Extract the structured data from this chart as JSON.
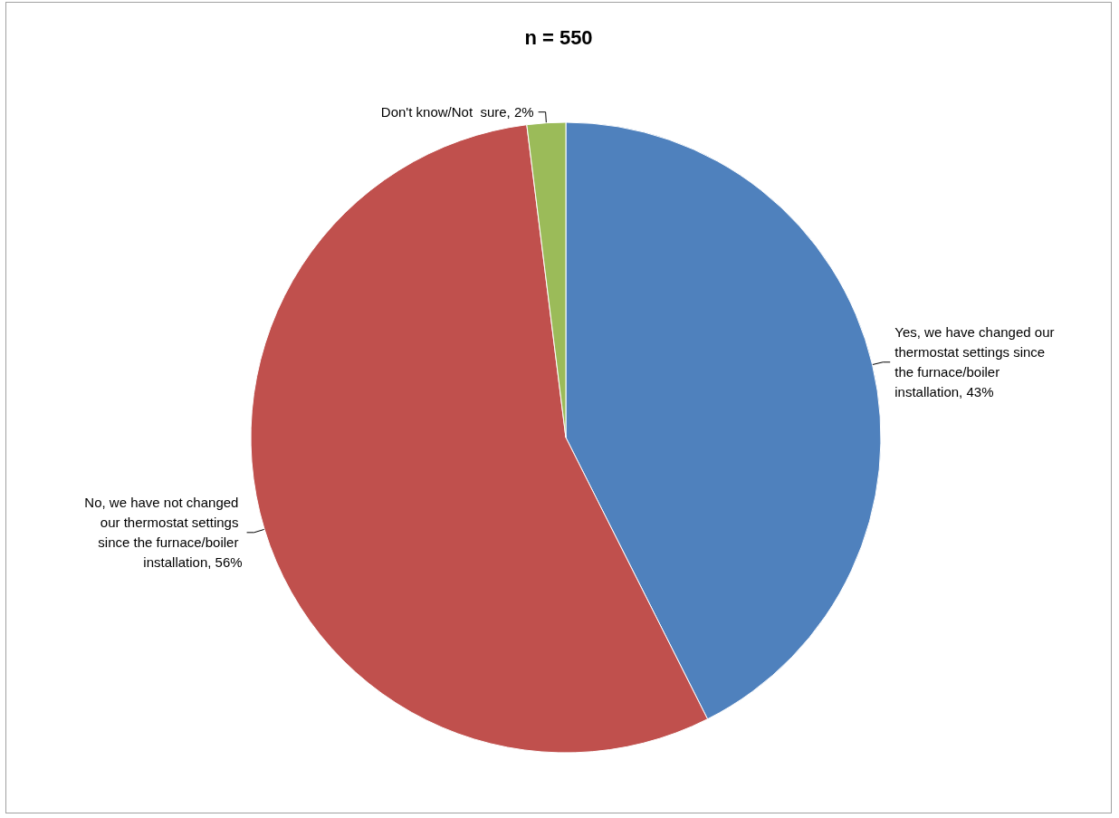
{
  "chart_data": {
    "type": "pie",
    "title": "n = 550",
    "categories": [
      "Yes, we have changed our thermostat settings since the furnace/boiler installation",
      "No, we have not changed our thermostat settings since the furnace/boiler installation",
      "Don't know/Not  sure"
    ],
    "values": [
      43,
      56,
      2
    ],
    "colors": [
      "#4f81bd",
      "#c0504d",
      "#9bbb59"
    ],
    "value_labels": [
      "43%",
      "56%",
      "2%"
    ],
    "legend": false
  }
}
